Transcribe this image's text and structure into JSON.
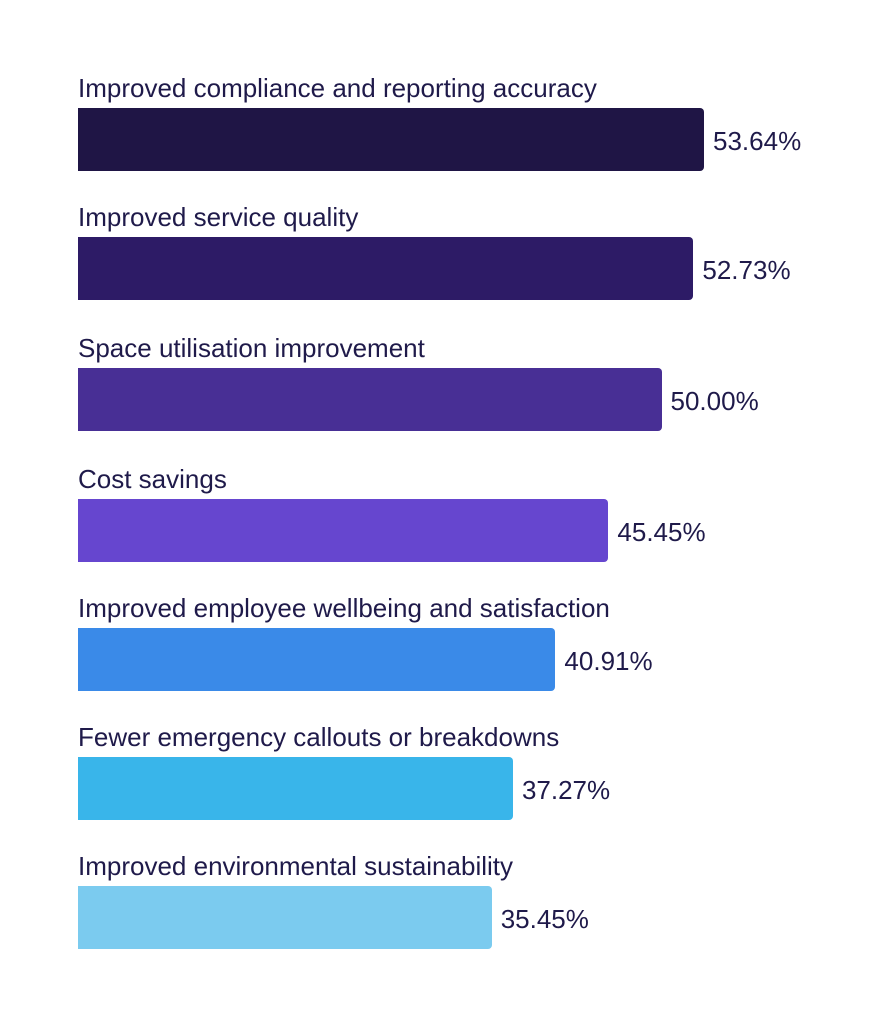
{
  "chart_data": {
    "type": "bar",
    "orientation": "horizontal",
    "title": "",
    "xlabel": "",
    "ylabel": "",
    "categories": [
      "Improved compliance and reporting accuracy",
      "Improved service quality",
      "Space utilisation improvement",
      "Cost savings",
      "Improved employee wellbeing and satisfaction",
      "Fewer emergency callouts or breakdowns",
      "Improved environmental sustainability"
    ],
    "values": [
      53.64,
      52.73,
      50.0,
      45.45,
      40.91,
      37.27,
      35.45
    ],
    "value_labels": [
      "53.64%",
      "52.73%",
      "50.00%",
      "45.45%",
      "40.91%",
      "37.27%",
      "35.45%"
    ],
    "colors": [
      "#1f1545",
      "#2d1b66",
      "#482f95",
      "#6646cf",
      "#3a8ae8",
      "#39b5ea",
      "#7bcbef"
    ],
    "xlim": [
      0,
      53.64
    ],
    "grid": false
  }
}
